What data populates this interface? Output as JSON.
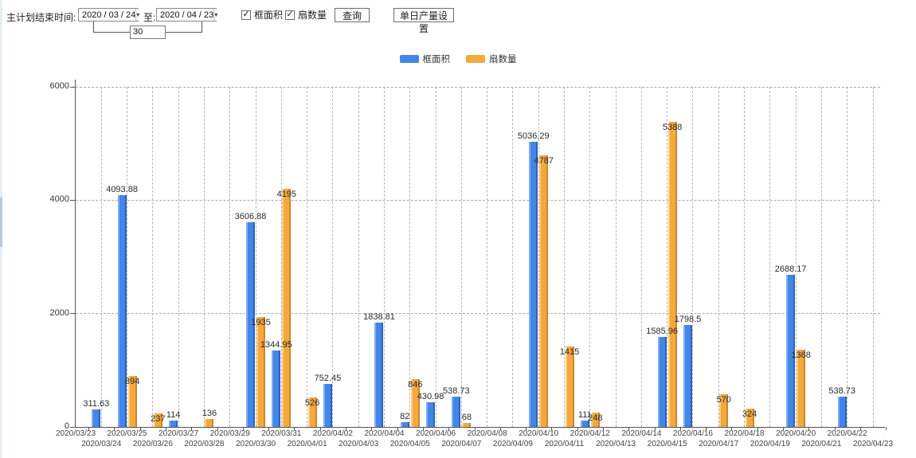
{
  "toolbar": {
    "plan_end_label": "主计划结束时间:",
    "date_from": "2020 / 03 / 24",
    "to_label": "至:",
    "date_to": "2020 / 04 / 23",
    "interval_days": "30",
    "series_checkboxes": [
      {
        "label": "框面积",
        "checked": true
      },
      {
        "label": "扇数量",
        "checked": true
      }
    ],
    "query_button": "查询",
    "daily_output_button": "单日产量设置"
  },
  "legend": [
    {
      "label": "框面积",
      "color": "#4486E8"
    },
    {
      "label": "扇数量",
      "color": "#F5A83D"
    }
  ],
  "chart_data": {
    "type": "bar",
    "title": "",
    "xlabel": "",
    "ylabel": "",
    "ylim": [
      0,
      6000
    ],
    "yticks": [
      0,
      2000,
      4000,
      6000
    ],
    "grid": "dashed",
    "legend_position": "top",
    "categories": [
      "2020/03/23",
      "2020/03/24",
      "2020/03/25",
      "2020/03/26",
      "2020/03/27",
      "2020/03/28",
      "2020/03/29",
      "2020/03/30",
      "2020/03/31",
      "2020/04/01",
      "2020/04/02",
      "2020/04/03",
      "2020/04/04",
      "2020/04/05",
      "2020/04/06",
      "2020/04/07",
      "2020/04/08",
      "2020/04/09",
      "2020/04/10",
      "2020/04/11",
      "2020/04/12",
      "2020/04/13",
      "2020/04/14",
      "2020/04/15",
      "2020/04/16",
      "2020/04/17",
      "2020/04/18",
      "2020/04/19",
      "2020/04/20",
      "2020/04/21",
      "2020/04/22",
      "2020/04/23"
    ],
    "series": [
      {
        "name": "框面积",
        "color": "#4486E8",
        "highlight": "#7caef4",
        "edge": "#2d63bd",
        "values": [
          null,
          311.63,
          4093.88,
          null,
          114,
          null,
          null,
          3606.88,
          1344.95,
          null,
          752.45,
          null,
          1838.81,
          82,
          430.98,
          538.73,
          null,
          null,
          5036.29,
          null,
          111,
          null,
          null,
          1585.96,
          1798.5,
          null,
          null,
          null,
          2688.17,
          null,
          538.73,
          null
        ]
      },
      {
        "name": "扇数量",
        "color": "#F5A83D",
        "highlight": "#ffcd79",
        "edge": "#c9882a",
        "values": [
          null,
          null,
          894,
          237,
          null,
          136,
          null,
          1935,
          4195,
          526,
          null,
          null,
          null,
          846,
          null,
          68,
          null,
          null,
          4787,
          1415,
          248,
          null,
          null,
          5388,
          null,
          570,
          324,
          null,
          1368,
          null,
          null,
          null
        ]
      }
    ]
  }
}
